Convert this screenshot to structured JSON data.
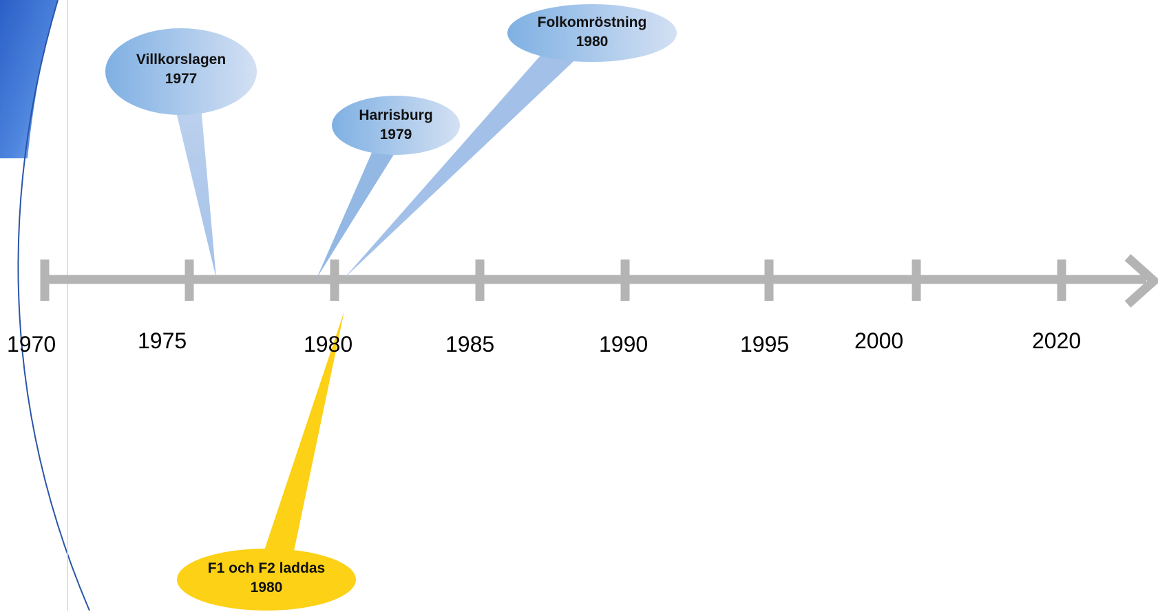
{
  "timeline": {
    "ticks": [
      "1970",
      "1975",
      "1980",
      "1985",
      "1990",
      "1995",
      "2000",
      "2020"
    ],
    "axis_color": "#b4b4b4"
  },
  "events": [
    {
      "name": "Villkorslagen",
      "year": "1977",
      "color": "#a9c5e8"
    },
    {
      "name": "Harrisburg",
      "year": "1979",
      "color": "#a9c5e8"
    },
    {
      "name": "Folkomröstning",
      "year": "1980",
      "color": "#bcd1ee"
    },
    {
      "name": "F1 och F2 laddas",
      "year": "1980",
      "color": "#fcd116"
    }
  ],
  "decoration": {
    "accent": "#2e6bd1"
  }
}
